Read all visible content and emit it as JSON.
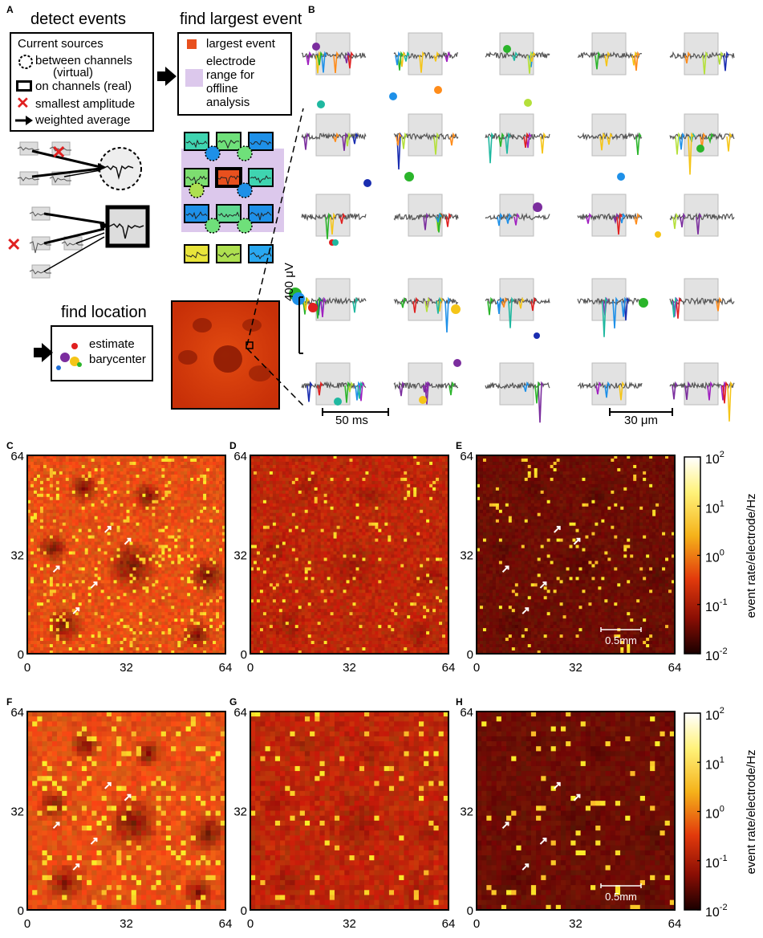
{
  "panel_a": {
    "letter": "A",
    "detect_title": "detect events",
    "find_largest_title": "find largest event",
    "find_location_title": "find location",
    "sources_box": {
      "heading": "Current sources",
      "virtual_line1": "between channels",
      "virtual_line2": "(virtual)",
      "real": "on channels (real)",
      "smallest": "smallest amplitude",
      "weighted": "weighted average"
    },
    "legend_box": {
      "largest": "largest event",
      "range_line1": "electrode",
      "range_line2": "range for",
      "range_line3": "offline",
      "range_line4": "analysis",
      "largest_color": "#e8501e",
      "range_color": "#dcc8ec"
    },
    "location_box": {
      "line1": "estimate",
      "line2": "barycenter"
    }
  },
  "panel_b": {
    "letter": "B",
    "voltage_scale": "400 μV",
    "time_scale": "50 ms",
    "space_scale": "30 μm"
  },
  "maps": {
    "tick_0": "0",
    "tick_32": "32",
    "tick_64": "64",
    "scalebar": "0.5mm",
    "panels": [
      {
        "letter": "C",
        "style": "bright"
      },
      {
        "letter": "D",
        "style": "medium"
      },
      {
        "letter": "E",
        "style": "dark"
      },
      {
        "letter": "F",
        "style": "bright"
      },
      {
        "letter": "G",
        "style": "medium"
      },
      {
        "letter": "H",
        "style": "dark"
      }
    ]
  },
  "colorbar": {
    "label": "event rate/electrode/Hz",
    "ticks": [
      "10",
      "10",
      "10",
      "10",
      "10"
    ],
    "exponents": [
      "2",
      "1",
      "0",
      "-1",
      "-2"
    ]
  }
}
